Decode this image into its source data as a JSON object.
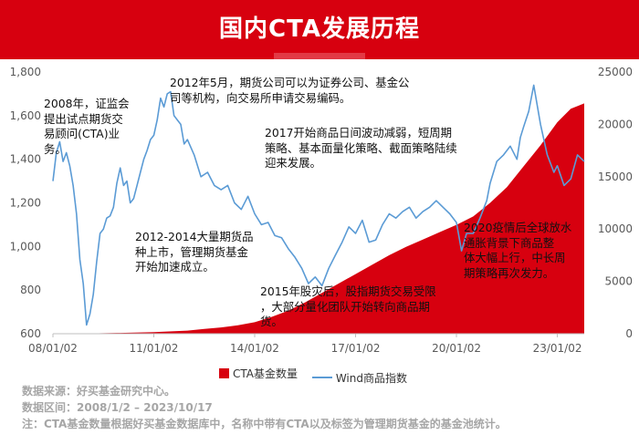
{
  "title": "国内CTA发展历程",
  "legend": {
    "area_label": "CTA基金数量",
    "line_label": "Wind商品指数"
  },
  "colors": {
    "brand": "#d7000f",
    "area": "#d7000f",
    "line": "#5b9bd5"
  },
  "annotations": [
    {
      "id": "a2008",
      "text": "2008年，证监会\n提出试点期货交\n易顾问(CTA)业\n务。"
    },
    {
      "id": "a2012",
      "text": "2012年5月，期货公司可以为证券公司、基金公\n司等机构，向交易所申请交易编码。"
    },
    {
      "id": "a2017",
      "text": "2017开始商品日间波动减弱，短周期\n策略、基本面量化策略、截面策略陆续\n迎来发展。"
    },
    {
      "id": "a2012b",
      "text": "2012-2014大量期货品\n种上市，管理期货基金\n开始加速成立。"
    },
    {
      "id": "a2015",
      "text": "2015年股灾后，股指期货交易受限\n，大部分量化团队开始转向商品期\n货。"
    },
    {
      "id": "a2020",
      "text": "2020疫情后全球放水\n通胀背景下商品整\n体大幅上行，中长周\n期策略再次发力。"
    }
  ],
  "footer": {
    "source": "数据来源：好买基金研究中心。",
    "range": "数据区间：2008/1/2 – 2023/10/17",
    "note": "注：CTA基金数量根据好买基金数据库中，名称中带有CTA以及标签为管理期货基金的基金池统计。"
  },
  "chart_data": {
    "type": "line",
    "title": "",
    "x_tick_labels": [
      "08/01/02",
      "11/01/02",
      "14/01/02",
      "17/01/02",
      "20/01/02",
      "23/01/02"
    ],
    "x_tick_years": [
      2008.0,
      2011.0,
      2014.0,
      2017.0,
      2020.0,
      2023.0
    ],
    "xlim": [
      2008.0,
      2023.8
    ],
    "y_left": {
      "ticks": [
        "600",
        "800",
        "1,000",
        "1,200",
        "1,400",
        "1,600",
        "1,800"
      ],
      "lim": [
        600,
        1800
      ]
    },
    "y_right": {
      "ticks": [
        "0",
        "5000",
        "10000",
        "15000",
        "20000",
        "25000"
      ],
      "lim": [
        0,
        25000
      ]
    },
    "series": [
      {
        "name": "CTA基金数量",
        "kind": "area",
        "axis": "right",
        "x": [
          2008.0,
          2009.0,
          2010.0,
          2011.0,
          2012.0,
          2012.5,
          2013.0,
          2013.5,
          2014.0,
          2014.5,
          2015.0,
          2015.5,
          2016.0,
          2016.5,
          2017.0,
          2017.5,
          2018.0,
          2018.5,
          2019.0,
          2019.5,
          2020.0,
          2020.5,
          2021.0,
          2021.5,
          2022.0,
          2022.5,
          2023.0,
          2023.4,
          2023.8
        ],
        "values": [
          0,
          30,
          80,
          150,
          300,
          450,
          600,
          800,
          1100,
          1600,
          2200,
          3000,
          3900,
          4800,
          5700,
          6600,
          7500,
          8300,
          9000,
          9700,
          10400,
          11200,
          12500,
          14000,
          16000,
          18000,
          20200,
          21500,
          22000
        ]
      },
      {
        "name": "Wind商品指数",
        "kind": "line",
        "axis": "left",
        "x": [
          2008.0,
          2008.1,
          2008.2,
          2008.3,
          2008.4,
          2008.5,
          2008.6,
          2008.7,
          2008.8,
          2008.9,
          2009.0,
          2009.1,
          2009.2,
          2009.3,
          2009.4,
          2009.5,
          2009.6,
          2009.7,
          2009.8,
          2009.9,
          2010.0,
          2010.1,
          2010.2,
          2010.3,
          2010.4,
          2010.5,
          2010.6,
          2010.7,
          2010.8,
          2010.9,
          2011.0,
          2011.1,
          2011.2,
          2011.3,
          2011.4,
          2011.5,
          2011.6,
          2011.7,
          2011.8,
          2011.9,
          2012.0,
          2012.2,
          2012.4,
          2012.6,
          2012.8,
          2013.0,
          2013.2,
          2013.4,
          2013.6,
          2013.8,
          2014.0,
          2014.2,
          2014.4,
          2014.6,
          2014.8,
          2015.0,
          2015.2,
          2015.4,
          2015.6,
          2015.8,
          2016.0,
          2016.2,
          2016.4,
          2016.6,
          2016.8,
          2017.0,
          2017.2,
          2017.4,
          2017.6,
          2017.8,
          2018.0,
          2018.2,
          2018.4,
          2018.6,
          2018.8,
          2019.0,
          2019.2,
          2019.4,
          2019.6,
          2019.8,
          2020.0,
          2020.15,
          2020.3,
          2020.5,
          2020.7,
          2020.9,
          2021.0,
          2021.2,
          2021.4,
          2021.6,
          2021.8,
          2021.9,
          2022.0,
          2022.15,
          2022.3,
          2022.5,
          2022.7,
          2022.9,
          2023.0,
          2023.2,
          2023.4,
          2023.6,
          2023.8
        ],
        "values": [
          1300,
          1430,
          1480,
          1390,
          1430,
          1370,
          1280,
          1150,
          940,
          830,
          640,
          690,
          780,
          930,
          1060,
          1080,
          1130,
          1140,
          1180,
          1290,
          1360,
          1280,
          1300,
          1200,
          1220,
          1280,
          1340,
          1400,
          1440,
          1490,
          1510,
          1580,
          1680,
          1640,
          1700,
          1710,
          1600,
          1580,
          1560,
          1470,
          1490,
          1420,
          1320,
          1340,
          1280,
          1260,
          1280,
          1200,
          1170,
          1230,
          1150,
          1100,
          1110,
          1050,
          1040,
          990,
          950,
          900,
          830,
          860,
          820,
          900,
          960,
          1020,
          1090,
          1060,
          1120,
          1020,
          1030,
          1100,
          1150,
          1130,
          1160,
          1180,
          1130,
          1160,
          1180,
          1210,
          1180,
          1150,
          1110,
          980,
          1060,
          1060,
          1130,
          1210,
          1290,
          1390,
          1420,
          1460,
          1400,
          1500,
          1550,
          1620,
          1740,
          1560,
          1420,
          1340,
          1370,
          1280,
          1310,
          1420,
          1390
        ]
      }
    ],
    "grid": false,
    "legend_position": "bottom"
  }
}
